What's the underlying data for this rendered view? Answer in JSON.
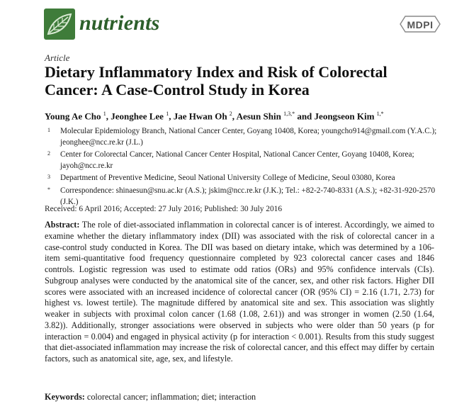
{
  "journal": {
    "name": "nutrients",
    "publisher": "MDPI"
  },
  "article_type": "Article",
  "title": "Dietary Inflammatory Index and Risk of Colorectal Cancer: A Case-Control Study in Korea",
  "authors": [
    {
      "name": "Young Ae Cho",
      "sup": "1"
    },
    {
      "name": "Jeonghee Lee",
      "sup": "1"
    },
    {
      "name": "Jae Hwan Oh",
      "sup": "2"
    },
    {
      "name": "Aesun Shin",
      "sup": "1,3,*"
    },
    {
      "name": "Jeongseon Kim",
      "sup": "1,*"
    }
  ],
  "affiliations": [
    {
      "mark": "1",
      "text": "Molecular Epidemiology Branch, National Cancer Center, Goyang 10408, Korea; youngcho914@gmail.com (Y.A.C.); jeonghee@ncc.re.kr (J.L.)"
    },
    {
      "mark": "2",
      "text": "Center for Colorectal Cancer, National Cancer Center Hospital, National Cancer Center, Goyang 10408, Korea; jayoh@ncc.re.kr"
    },
    {
      "mark": "3",
      "text": "Department of Preventive Medicine, Seoul National University College of Medicine, Seoul 03080, Korea"
    },
    {
      "mark": "*",
      "text": "Correspondence: shinaesun@snu.ac.kr (A.S.); jskim@ncc.re.kr (J.K.); Tel.: +82-2-740-8331 (A.S.); +82-31-920-2570 (J.K.)"
    }
  ],
  "dates": "Received: 6 April 2016; Accepted: 27 July 2016; Published: 30 July 2016",
  "abstract": {
    "label": "Abstract:",
    "text": "The role of diet-associated inflammation in colorectal cancer is of interest. Accordingly, we aimed to examine whether the dietary inflammatory index (DII) was associated with the risk of colorectal cancer in a case-control study conducted in Korea. The DII was based on dietary intake, which was determined by a 106-item semi-quantitative food frequency questionnaire completed by 923 colorectal cancer cases and 1846 controls. Logistic regression was used to estimate odd ratios (ORs) and 95% confidence intervals (CIs). Subgroup analyses were conducted by the anatomical site of the cancer, sex, and other risk factors. Higher DII scores were associated with an increased incidence of colorectal cancer (OR (95% CI) = 2.16 (1.71, 2.73) for highest vs. lowest tertile). The magnitude differed by anatomical site and sex. This association was slightly weaker in subjects with proximal colon cancer (1.68 (1.08, 2.61)) and was stronger in women (2.50 (1.64, 3.82)). Additionally, stronger associations were observed in subjects who were older than 50 years (p for interaction = 0.004) and engaged in physical activity (p for interaction < 0.001). Results from this study suggest that diet-associated inflammation may increase the risk of colorectal cancer, and this effect may differ by certain factors, such as anatomical site, age, sex, and lifestyle."
  },
  "keywords": {
    "label": "Keywords:",
    "text": "colorectal cancer; inflammation; diet; interaction"
  },
  "colors": {
    "brand_green": "#3f7c3a",
    "title_green": "#2c5f2a"
  },
  "icons": {
    "journal_logo": "leaf-logo-icon",
    "publisher_logo": "mdpi-logo-icon"
  }
}
